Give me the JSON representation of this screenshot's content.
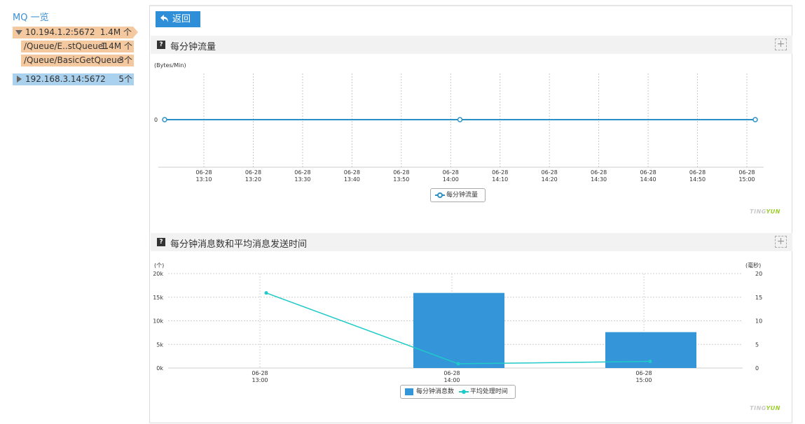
{
  "sidebar": {
    "title": "MQ 一览",
    "nodes": [
      {
        "label": "10.194.1.2:5672",
        "count": "1.4M 个"
      },
      {
        "label": "/Queue/E..stQueue1",
        "count": "1.4M 个"
      },
      {
        "label": "/Queue/BasicGetQueue",
        "count": "3个"
      },
      {
        "label": "192.168.3.14:5672",
        "count": "5个"
      }
    ]
  },
  "toolbar": {
    "back_label": "返回"
  },
  "colors": {
    "accent": "#2e8fd8",
    "selected_host": "#f5c9a0",
    "host": "#aad2ef",
    "line_cyan": "#1fcac8",
    "brand_green": "#9ccf2c"
  },
  "sections": [
    {
      "title": "每分钟流量",
      "help": "?",
      "expand": "+"
    },
    {
      "title": "每分钟消息数和平均消息发送时间",
      "help": "?",
      "expand": "+"
    }
  ],
  "brand": {
    "part1": "TING",
    "part2": "YUN"
  },
  "chart_data": [
    {
      "type": "line",
      "title": "每分钟流量",
      "ylabel": "(Bytes/Min)",
      "x": [
        "06-28 13:00",
        "06-28 14:00",
        "06-28 15:00"
      ],
      "x_ticks": [
        "06-28\n13:10",
        "06-28\n13:20",
        "06-28\n13:30",
        "06-28\n13:40",
        "06-28\n13:50",
        "06-28\n14:00",
        "06-28\n14:10",
        "06-28\n14:20",
        "06-28\n14:30",
        "06-28\n14:40",
        "06-28\n14:50",
        "06-28\n15:00"
      ],
      "y_ticks": [
        "0"
      ],
      "series": [
        {
          "name": "每分钟流量",
          "values": [
            0,
            0,
            0
          ],
          "color": "#2a91c7"
        }
      ],
      "legend": "bottom-center",
      "grid": "vertical-dashed"
    },
    {
      "type": "bar",
      "title": "每分钟消息数和平均消息发送时间",
      "ylabel": "(个)",
      "y2label": "(毫秒)",
      "categories": [
        "06-28\n13:00",
        "06-28\n14:00",
        "06-28\n15:00"
      ],
      "ylim": [
        0,
        20000
      ],
      "y2lim": [
        0,
        20
      ],
      "y_ticks": [
        "0k",
        "5k",
        "10k",
        "15k",
        "20k"
      ],
      "y2_ticks": [
        "0",
        "5",
        "10",
        "15",
        "20"
      ],
      "series": [
        {
          "name": "每分钟消息数",
          "type": "bar",
          "axis": "left",
          "values": [
            0,
            15900,
            7600
          ],
          "color": "#3595d9"
        },
        {
          "name": "平均处理时间",
          "type": "line",
          "axis": "right",
          "values": [
            15.9,
            0.9,
            1.4
          ],
          "color": "#1fcac8"
        }
      ],
      "legend": "bottom-center",
      "grid": "dashed"
    }
  ]
}
